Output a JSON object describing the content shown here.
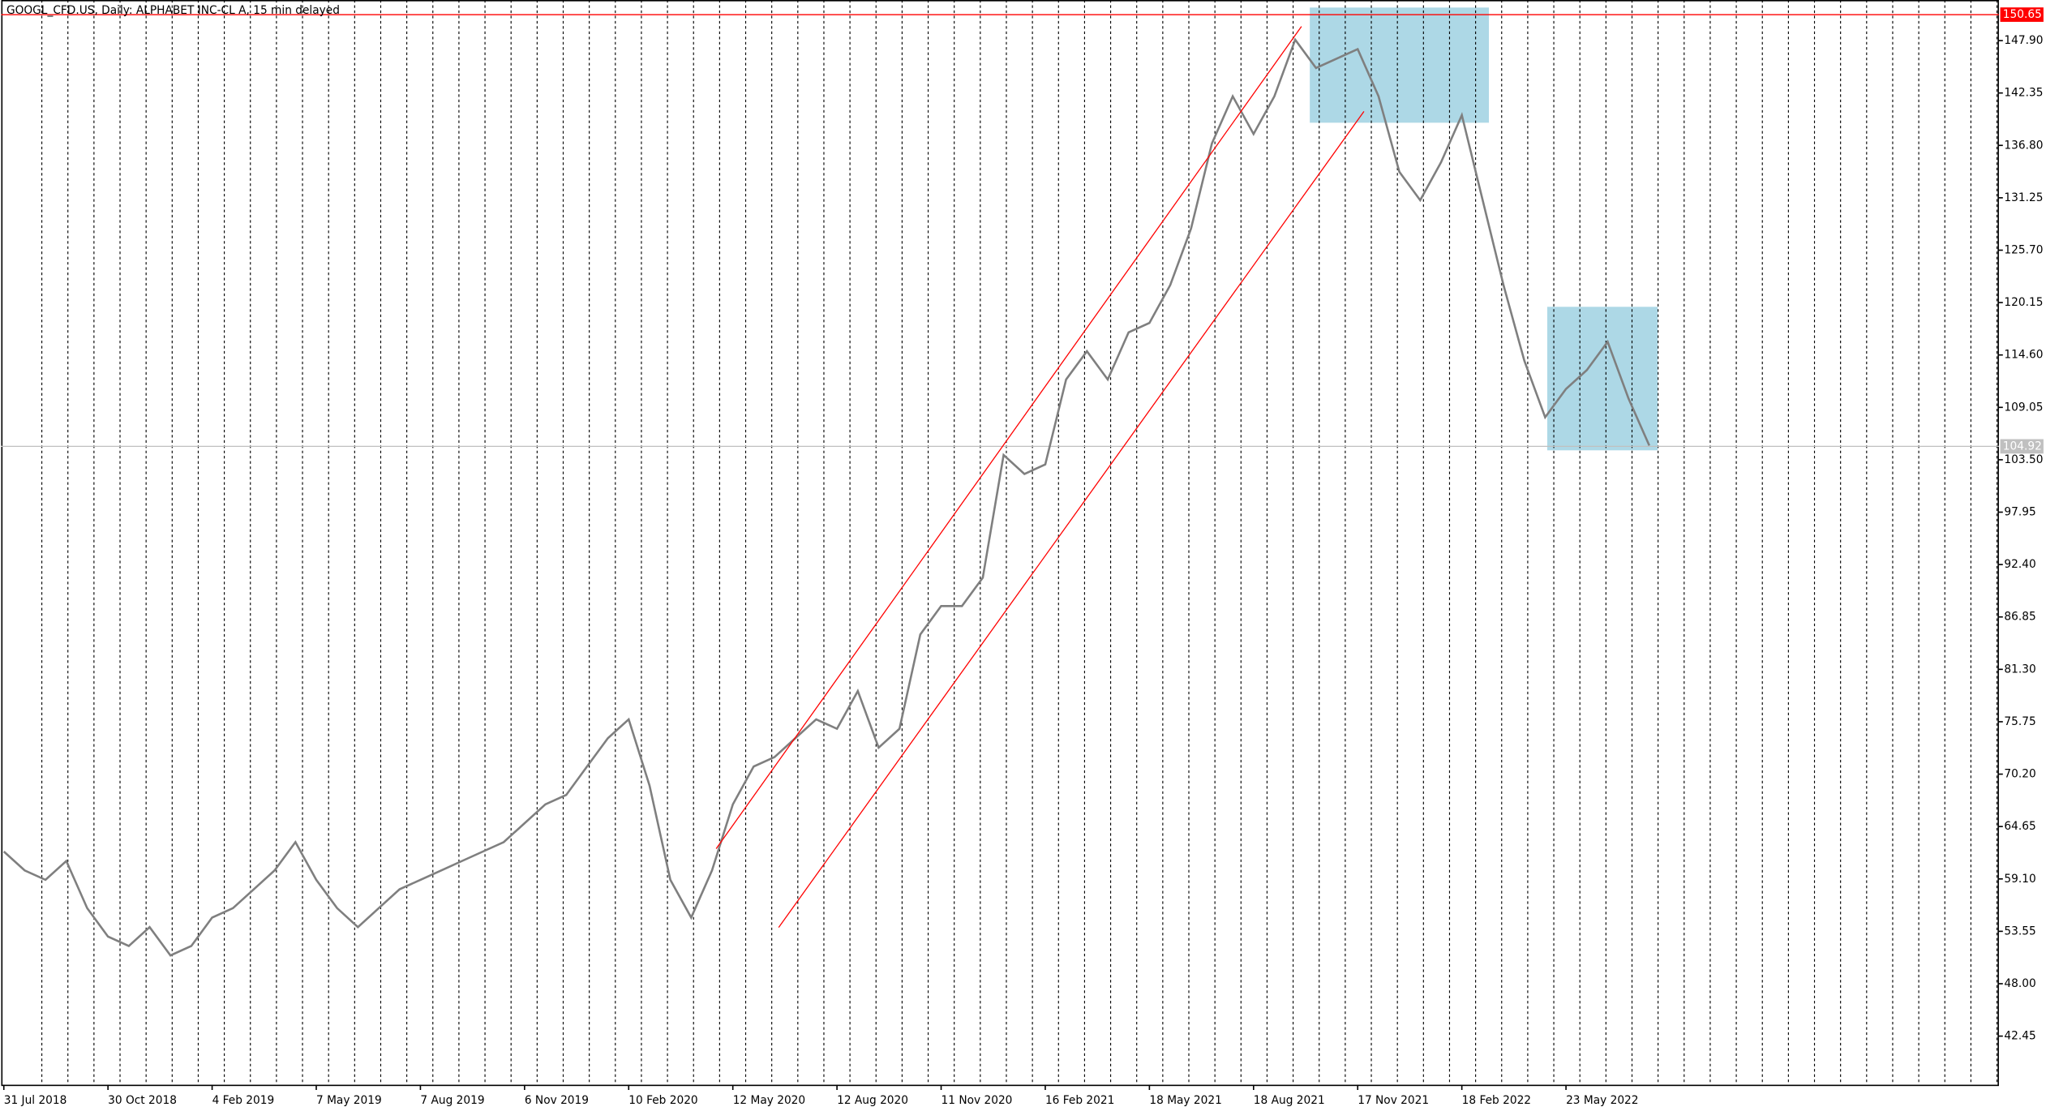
{
  "chart_data": {
    "type": "line",
    "title": "GOOGL_CFD.US, Daily:  ALPHABET INC-CL A, 15 min delayed",
    "categories": [
      "31 Jul 2018",
      null,
      null,
      null,
      null,
      "30 Oct 2018",
      null,
      null,
      null,
      null,
      "4 Feb 2019",
      null,
      null,
      null,
      null,
      "7 May 2019",
      null,
      null,
      null,
      null,
      "7 Aug 2019",
      null,
      null,
      null,
      null,
      "6 Nov 2019",
      null,
      null,
      null,
      null,
      "10 Feb 2020",
      null,
      null,
      null,
      null,
      "12 May 2020",
      null,
      null,
      null,
      null,
      "12 Aug 2020",
      null,
      null,
      null,
      null,
      "11 Nov 2020",
      null,
      null,
      null,
      null,
      "16 Feb 2021",
      null,
      null,
      null,
      null,
      "18 May 2021",
      null,
      null,
      null,
      null,
      "18 Aug 2021",
      null,
      null,
      null,
      null,
      "17 Nov 2021",
      null,
      null,
      null,
      null,
      "18 Feb 2022",
      null,
      null,
      null,
      null,
      "23 May 2022",
      null,
      null,
      null,
      null
    ],
    "series": [
      {
        "name": "GOOGL_CFD.US",
        "color": "#7f7f7f",
        "values": [
          62,
          60,
          59,
          61,
          56,
          53,
          52,
          54,
          51,
          52,
          55,
          56,
          58,
          60,
          63,
          59,
          56,
          54,
          56,
          58,
          59,
          60,
          61,
          62,
          63,
          65,
          67,
          68,
          71,
          74,
          76,
          69,
          59,
          55,
          60,
          67,
          71,
          72,
          74,
          76,
          75,
          79,
          73,
          75,
          85,
          88,
          88,
          91,
          104,
          102,
          103,
          112,
          115,
          112,
          117,
          118,
          122,
          128,
          137,
          142,
          138,
          142,
          148,
          145,
          146,
          147,
          142,
          134,
          131,
          135,
          140,
          131,
          122,
          114,
          108,
          111,
          113,
          116,
          110,
          105
        ]
      }
    ],
    "ylim": [
      37.3,
      152.2
    ],
    "yticks": [
      {
        "value": 147.9,
        "label": "147.90"
      },
      {
        "value": 142.35,
        "label": "142.35"
      },
      {
        "value": 136.8,
        "label": "136.80"
      },
      {
        "value": 131.25,
        "label": "131.25"
      },
      {
        "value": 125.7,
        "label": "125.70"
      },
      {
        "value": 120.15,
        "label": "120.15"
      },
      {
        "value": 114.6,
        "label": "114.60"
      },
      {
        "value": 109.05,
        "label": "109.05"
      },
      {
        "value": 103.5,
        "label": "103.50"
      },
      {
        "value": 97.95,
        "label": "97.95"
      },
      {
        "value": 92.4,
        "label": "92.40"
      },
      {
        "value": 86.85,
        "label": "86.85"
      },
      {
        "value": 81.3,
        "label": "81.30"
      },
      {
        "value": 75.75,
        "label": "75.75"
      },
      {
        "value": 70.2,
        "label": "70.20"
      },
      {
        "value": 64.65,
        "label": "64.65"
      },
      {
        "value": 59.1,
        "label": "59.10"
      },
      {
        "value": 53.55,
        "label": "53.55"
      },
      {
        "value": 48,
        "label": "48.00"
      },
      {
        "value": 42.45,
        "label": "42.45"
      }
    ],
    "grid": true,
    "price_lines": [
      {
        "value": 150.65,
        "color": "#ff0000"
      },
      {
        "value": 104.92,
        "color": "#c0c0c0"
      }
    ],
    "rectangles": [
      {
        "x": [
          62.7,
          71.3
        ],
        "y": [
          139.2,
          151.4
        ],
        "color": "#add8e6"
      },
      {
        "x": [
          74.1,
          79.4
        ],
        "y": [
          104.5,
          119.7
        ],
        "color": "#add8e6"
      }
    ],
    "trend_lines": [
      {
        "x": [
          34.2,
          62.3
        ],
        "y": [
          62.3,
          149.4
        ],
        "color": "#ff0000"
      },
      {
        "x": [
          37.2,
          65.3
        ],
        "y": [
          53.96,
          140.4
        ],
        "color": "#ff0000"
      }
    ]
  }
}
